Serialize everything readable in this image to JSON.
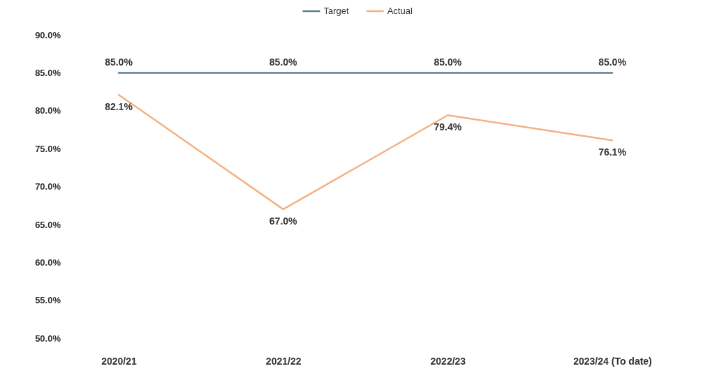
{
  "chart_data": {
    "type": "line",
    "categories": [
      "2020/21",
      "2021/22",
      "2022/23",
      "2023/24 (To date)"
    ],
    "series": [
      {
        "name": "Target",
        "color": "#5b7f95",
        "values": [
          85.0,
          85.0,
          85.0,
          85.0
        ],
        "value_labels": [
          "85.0%",
          "85.0%",
          "85.0%",
          "85.0%"
        ]
      },
      {
        "name": "Actual",
        "color": "#f4b183",
        "values": [
          82.1,
          67.0,
          79.4,
          76.1
        ],
        "value_labels": [
          "82.1%",
          "67.0%",
          "79.4%",
          "76.1%"
        ]
      }
    ],
    "ylim": [
      50,
      90
    ],
    "yticks": [
      {
        "value": 50,
        "label": "50.0%"
      },
      {
        "value": 55,
        "label": "55.0%"
      },
      {
        "value": 60,
        "label": "60.0%"
      },
      {
        "value": 65,
        "label": "65.0%"
      },
      {
        "value": 70,
        "label": "70.0%"
      },
      {
        "value": 75,
        "label": "75.0%"
      },
      {
        "value": 80,
        "label": "80.0%"
      },
      {
        "value": 85,
        "label": "85.0%"
      },
      {
        "value": 90,
        "label": "90.0%"
      }
    ],
    "grid": false,
    "legend": "top",
    "marker": "none",
    "line_style": "solid"
  }
}
